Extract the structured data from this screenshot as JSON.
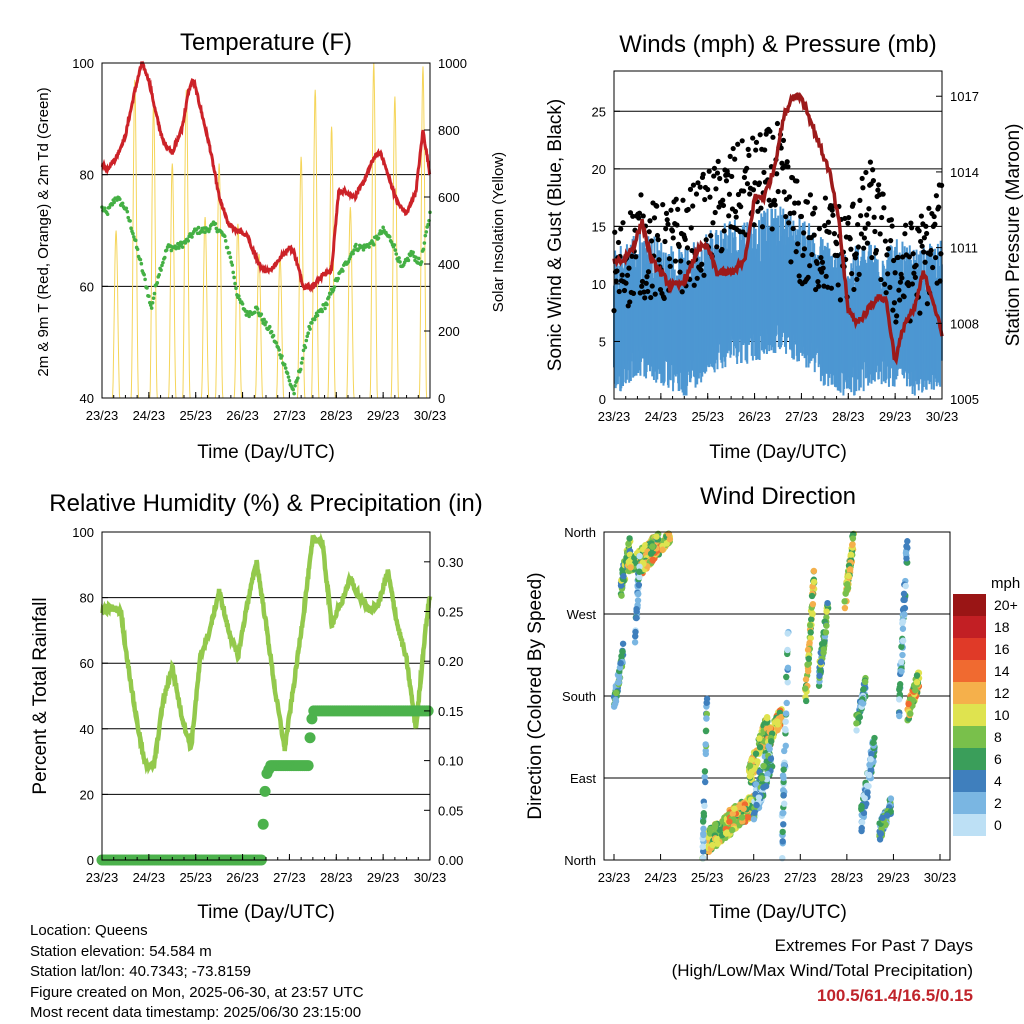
{
  "colors": {
    "temp": "#cc2228",
    "dew": "#44b044",
    "solar": "#f5d55a",
    "gust": "#000000",
    "wind": "#4d97d2",
    "pressure": "#9c1a1a",
    "rh": "#93c94c",
    "precip": "#4cb24c",
    "extreme": "#c0242b"
  },
  "x_ticks": [
    "23/23",
    "24/23",
    "25/23",
    "26/23",
    "27/23",
    "28/23",
    "29/23",
    "30/23"
  ],
  "x_label": "Time (Day/UTC)",
  "panels": {
    "temperature": {
      "title": "Temperature (F)",
      "ylabel_left": "2m & 9m T (Red, Orange) & 2m Td (Green)",
      "ylabel_right": "Solar Insolation (Yellow)",
      "ylim_left": [
        40,
        100
      ],
      "yticks_left": [
        "40",
        "60",
        "80",
        "100"
      ],
      "ylim_right": [
        0,
        1000
      ],
      "yticks_right": [
        "0",
        "200",
        "400",
        "600",
        "800",
        "1000"
      ]
    },
    "winds": {
      "title": "Winds (mph) & Pressure (mb)",
      "ylabel_left": "Sonic Wind & Gust (Blue, Black)",
      "ylabel_right": "Station Pressure (Maroon)",
      "ylim_left": [
        0,
        28.5
      ],
      "yticks_left": [
        "0",
        "5",
        "10",
        "15",
        "20",
        "25"
      ],
      "ylim_right": [
        1005,
        1018
      ],
      "yticks_right": [
        "1005",
        "1008",
        "1011",
        "1014",
        "1017"
      ]
    },
    "humidity": {
      "title": "Relative Humidity (%) & Precipitation (in)",
      "ylabel_left": "Percent & Total Rainfall",
      "ylim_left": [
        0,
        100
      ],
      "yticks_left": [
        "0",
        "20",
        "40",
        "60",
        "80",
        "100"
      ],
      "ylim_right": [
        0,
        0.33
      ],
      "yticks_right": [
        "0.00",
        "0.05",
        "0.10",
        "0.15",
        "0.20",
        "0.25",
        "0.30"
      ]
    },
    "direction": {
      "title": "Wind Direction",
      "ylabel_left": "Direction (Colored By Speed)",
      "yticks_left": [
        "North",
        "East",
        "South",
        "West",
        "North"
      ],
      "legend_title": "mph",
      "legend_labels": [
        "0",
        "2",
        "4",
        "6",
        "8",
        "10",
        "12",
        "14",
        "16",
        "18",
        "20+"
      ],
      "legend_colors": [
        "#bde0f5",
        "#7ab6e2",
        "#3f7fbd",
        "#3a9e5a",
        "#79c04b",
        "#dfe34f",
        "#f5b04b",
        "#f06a30",
        "#e03a28",
        "#c21f24",
        "#9a1515"
      ]
    }
  },
  "chart_data": [
    {
      "type": "line",
      "title": "Temperature (F)",
      "xlabel": "Time (Day/UTC)",
      "x_unit": "days since 23/23",
      "series": [
        {
          "name": "2m & 9m T",
          "x": [
            0,
            0.1,
            0.3,
            0.5,
            0.7,
            0.85,
            1.0,
            1.15,
            1.3,
            1.5,
            1.7,
            1.85,
            1.95,
            2.1,
            2.3,
            2.5,
            2.7,
            2.9,
            3.1,
            3.25,
            3.4,
            3.6,
            3.8,
            4.0,
            4.1,
            4.3,
            4.5,
            4.7,
            4.9,
            5.05,
            5.2,
            5.4,
            5.6,
            5.8,
            5.95,
            6.1,
            6.3,
            6.5,
            6.7,
            6.85,
            7.0
          ],
          "y": [
            82,
            81,
            83,
            87,
            95,
            100,
            97,
            91,
            86,
            84,
            88,
            95,
            97,
            92,
            85,
            76,
            71,
            70,
            69,
            66,
            63,
            63,
            65,
            67,
            66,
            60,
            60,
            62,
            63,
            77,
            77,
            76,
            79,
            83,
            84,
            80,
            75,
            73,
            77,
            88,
            80
          ]
        },
        {
          "name": "2m Td",
          "x": [
            0,
            0.1,
            0.3,
            0.5,
            0.65,
            0.8,
            0.95,
            1.05,
            1.2,
            1.4,
            1.6,
            1.8,
            2.0,
            2.2,
            2.4,
            2.6,
            2.75,
            2.9,
            3.1,
            3.3,
            3.5,
            3.6,
            3.75,
            3.9,
            4.0,
            4.1,
            4.25,
            4.4,
            4.6,
            4.8,
            5.0,
            5.2,
            5.4,
            5.6,
            5.8,
            6.0,
            6.2,
            6.4,
            6.6,
            6.8,
            7.0
          ],
          "y": [
            74,
            73,
            76,
            74,
            70,
            65,
            60,
            56,
            62,
            67,
            67,
            68,
            70,
            70,
            71,
            69,
            65,
            58,
            55,
            56,
            53,
            52,
            49,
            46,
            43,
            41,
            46,
            52,
            55,
            57,
            61,
            64,
            67,
            67,
            68,
            70,
            68,
            63,
            66,
            64,
            73
          ]
        }
      ],
      "solar_insolation": {
        "peaks_x": [
          0.3,
          0.7,
          1.1,
          1.5,
          1.8,
          2.2,
          2.5,
          2.9,
          3.35,
          3.8,
          4.25,
          4.55,
          4.9,
          5.3,
          5.8,
          6.25,
          6.85
        ],
        "peaks_y": [
          500,
          950,
          880,
          700,
          920,
          540,
          700,
          520,
          430,
          420,
          720,
          920,
          810,
          570,
          1000,
          900,
          990
        ]
      },
      "ylim": [
        40,
        100
      ]
    },
    {
      "type": "line",
      "title": "Winds (mph) & Pressure (mb)",
      "xlabel": "Time (Day/UTC)",
      "series": [
        {
          "name": "Sonic Wind",
          "x": [
            0,
            0.5,
            1.0,
            1.5,
            2.0,
            2.5,
            3.0,
            3.5,
            4.0,
            4.5,
            5.0,
            5.5,
            6.0,
            6.5,
            7.0
          ],
          "y": [
            6,
            8,
            7,
            6,
            8,
            9,
            9,
            10,
            9,
            7,
            6,
            7,
            7,
            6,
            7
          ]
        },
        {
          "name": "Gust",
          "x": [
            0,
            0.5,
            1.0,
            1.5,
            2.0,
            2.5,
            3.0,
            3.5,
            4.0,
            4.5,
            5.0,
            5.5,
            6.0,
            6.5,
            7.0
          ],
          "y": [
            11,
            14,
            13,
            14,
            16,
            18,
            19,
            20,
            14,
            14,
            13,
            17,
            11,
            12,
            15
          ]
        },
        {
          "name": "Station Pressure",
          "x": [
            0,
            0.2,
            0.4,
            0.6,
            0.8,
            1.0,
            1.2,
            1.4,
            1.6,
            1.8,
            2.0,
            2.2,
            2.5,
            2.8,
            3.0,
            3.2,
            3.4,
            3.6,
            3.8,
            4.0,
            4.2,
            4.4,
            4.6,
            4.8,
            5.0,
            5.2,
            5.4,
            5.6,
            5.8,
            6.0,
            6.2,
            6.4,
            6.6,
            6.8,
            7.0
          ],
          "y": [
            1010.5,
            1010.5,
            1011,
            1012,
            1010.5,
            1010,
            1009.5,
            1009.5,
            1010,
            1011,
            1011,
            1010,
            1010,
            1010.5,
            1013,
            1013,
            1014,
            1016,
            1017,
            1017,
            1016,
            1015,
            1014,
            1012,
            1008.5,
            1008,
            1008.5,
            1009,
            1009,
            1006.5,
            1008,
            1008.5,
            1010,
            1009,
            1007.5
          ]
        }
      ],
      "ylim": [
        0,
        28.5
      ]
    },
    {
      "type": "line",
      "title": "Relative Humidity (%) & Precipitation (in)",
      "xlabel": "Time (Day/UTC)",
      "ylabel": "Percent & Total Rainfall",
      "series": [
        {
          "name": "Relative Humidity",
          "x": [
            0,
            0.2,
            0.4,
            0.5,
            0.7,
            0.9,
            1.1,
            1.3,
            1.5,
            1.7,
            1.9,
            2.1,
            2.3,
            2.5,
            2.7,
            2.9,
            3.1,
            3.3,
            3.5,
            3.7,
            3.9,
            4.1,
            4.3,
            4.5,
            4.7,
            4.9,
            5.1,
            5.3,
            5.5,
            5.7,
            5.9,
            6.1,
            6.3,
            6.5,
            6.7,
            6.9,
            7.0
          ],
          "y": [
            76,
            77,
            76,
            65,
            46,
            30,
            28,
            48,
            59,
            44,
            34,
            62,
            70,
            82,
            70,
            62,
            78,
            91,
            72,
            51,
            34,
            54,
            75,
            98,
            97,
            72,
            78,
            86,
            80,
            76,
            78,
            88,
            72,
            61,
            40,
            70,
            81
          ]
        },
        {
          "name": "Total Precipitation",
          "x": [
            0,
            1,
            2,
            3,
            3.4,
            3.45,
            3.5,
            3.6,
            4.0,
            4.4,
            4.45,
            4.5,
            5,
            6,
            7
          ],
          "y": [
            0,
            0,
            0,
            0,
            0,
            0.045,
            0.085,
            0.095,
            0.095,
            0.095,
            0.13,
            0.15,
            0.15,
            0.15,
            0.15
          ]
        }
      ],
      "ylim": [
        0,
        100
      ]
    },
    {
      "type": "scatter",
      "title": "Wind Direction",
      "xlabel": "Time (Day/UTC)",
      "ylabel": "Direction (Colored By Speed)",
      "y_categories": [
        "North",
        "East",
        "South",
        "West",
        "North"
      ],
      "colorbar": {
        "label": "mph",
        "ticks": [
          "0",
          "2",
          "4",
          "6",
          "8",
          "10",
          "12",
          "14",
          "16",
          "18",
          "20+"
        ]
      }
    }
  ],
  "info": {
    "location": "Location: Queens",
    "elevation": "Station elevation: 54.584 m",
    "latlon": "Station lat/lon: 40.7343; -73.8159",
    "created": "Figure created on Mon, 2025-06-30, at 23:57 UTC",
    "recent": "Most recent data timestamp: 2025/06/30 23:15:00"
  },
  "extremes": {
    "line1": "Extremes For Past 7 Days",
    "line2": "(High/Low/Max Wind/Total Precipitation)",
    "values": "100.5/61.4/16.5/0.15"
  }
}
